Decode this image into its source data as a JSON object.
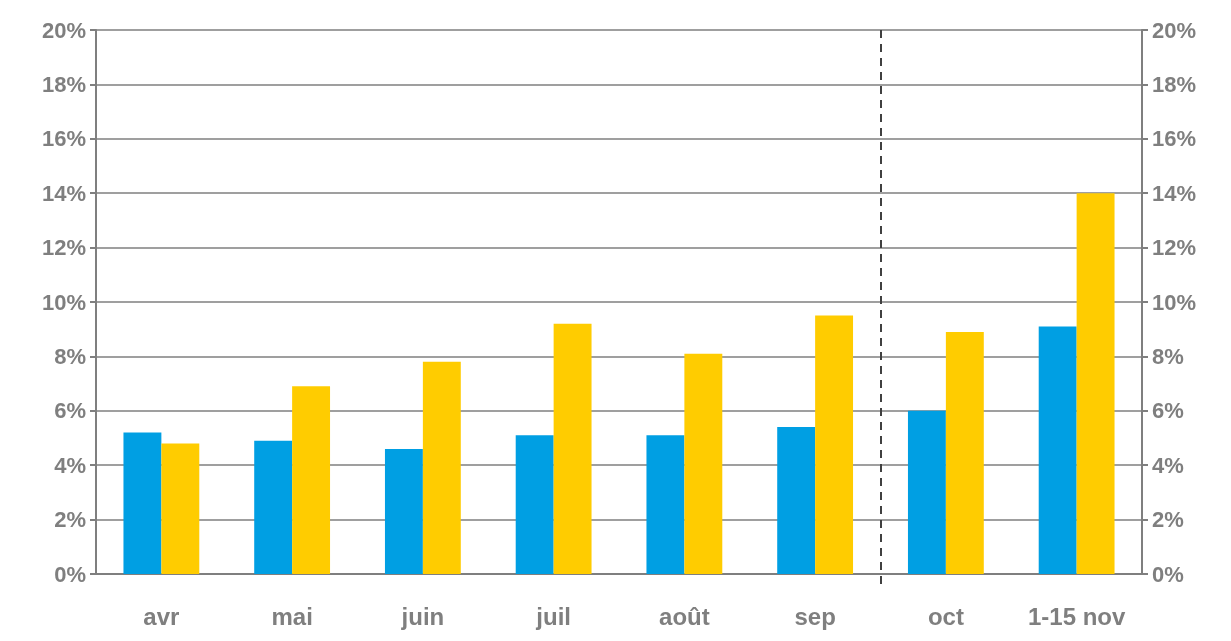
{
  "chart_data": {
    "type": "bar",
    "categories": [
      "avr",
      "mai",
      "juin",
      "juil",
      "août",
      "sep",
      "oct",
      "1-15 nov"
    ],
    "series": [
      {
        "color": "#009fe3",
        "values": [
          5.2,
          4.9,
          4.6,
          5.1,
          5.1,
          5.4,
          6.0,
          9.1
        ]
      },
      {
        "color": "#ffcc00",
        "values": [
          4.8,
          6.9,
          7.8,
          9.2,
          8.1,
          9.5,
          8.9,
          14.0
        ]
      }
    ],
    "ylim": [
      0,
      20
    ],
    "yticks": [
      {
        "value": 0,
        "label": "0%"
      },
      {
        "value": 2,
        "label": "2%"
      },
      {
        "value": 4,
        "label": "4%"
      },
      {
        "value": 6,
        "label": "6%"
      },
      {
        "value": 8,
        "label": "8%"
      },
      {
        "value": 10,
        "label": "10%"
      },
      {
        "value": 12,
        "label": "12%"
      },
      {
        "value": 14,
        "label": "14%"
      },
      {
        "value": 16,
        "label": "16%"
      },
      {
        "value": 18,
        "label": "18%"
      },
      {
        "value": 20,
        "label": "20%"
      }
    ],
    "y2lim": [
      0,
      20
    ],
    "y2ticks": [
      {
        "value": 0,
        "label": "0%"
      },
      {
        "value": 2,
        "label": "2%"
      },
      {
        "value": 4,
        "label": "4%"
      },
      {
        "value": 6,
        "label": "6%"
      },
      {
        "value": 8,
        "label": "8%"
      },
      {
        "value": 10,
        "label": "10%"
      },
      {
        "value": 12,
        "label": "12%"
      },
      {
        "value": 14,
        "label": "14%"
      },
      {
        "value": 16,
        "label": "16%"
      },
      {
        "value": 18,
        "label": "18%"
      },
      {
        "value": 20,
        "label": "20%"
      }
    ],
    "ref_lines": [
      {
        "axis": "x",
        "value": "sep",
        "color": "#404040",
        "line_style": "dashed"
      }
    ],
    "grid": "y"
  }
}
